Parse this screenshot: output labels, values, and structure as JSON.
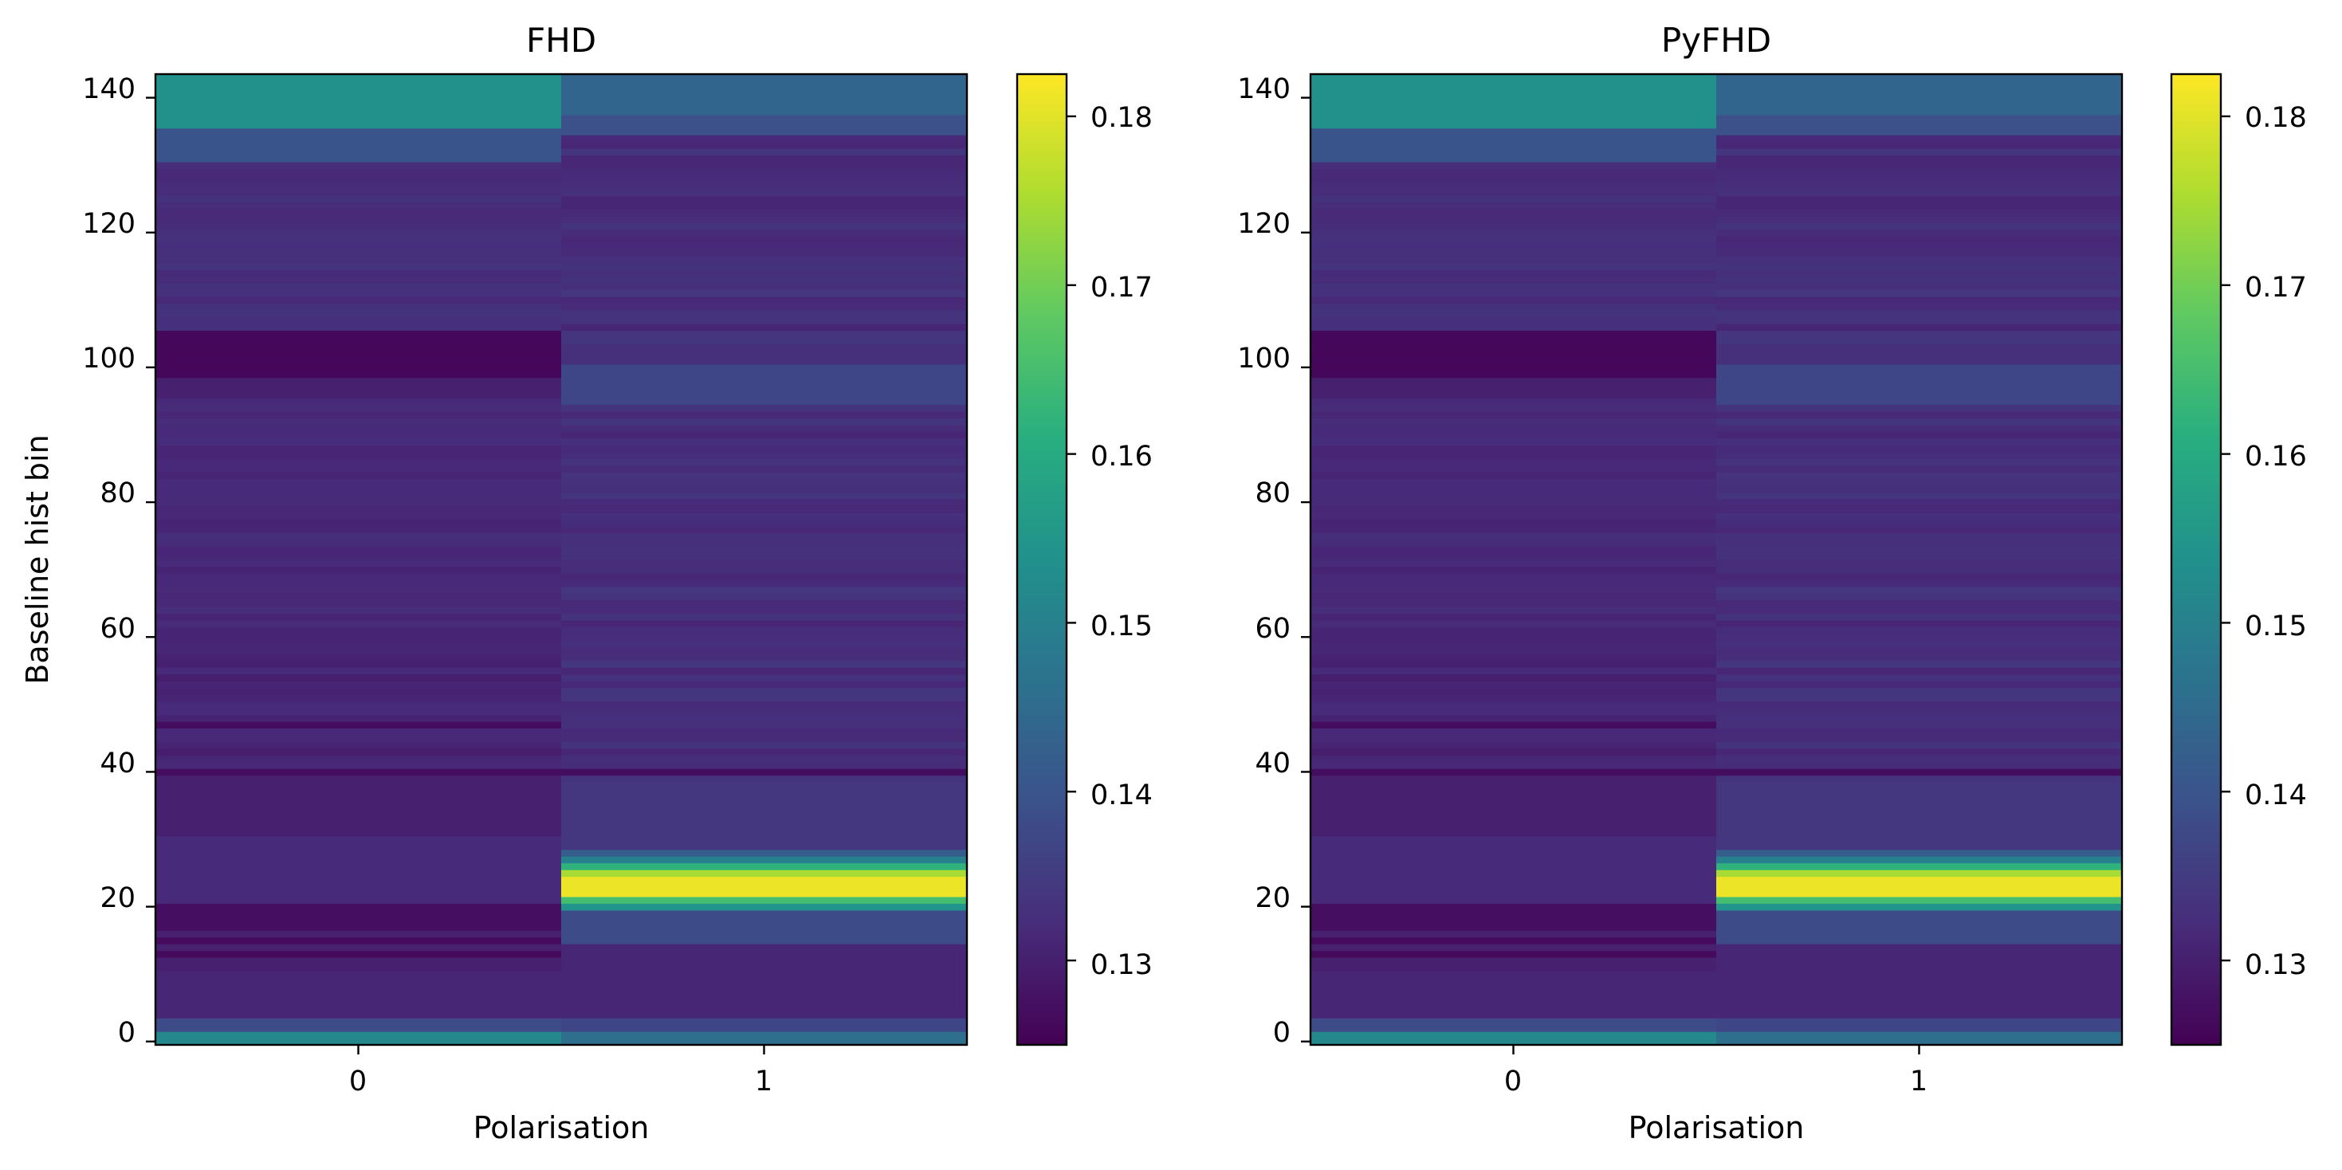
{
  "chart_data": [
    {
      "type": "heatmap",
      "title": "FHD",
      "xlabel": "Polarisation",
      "ylabel": "Baseline hist bin",
      "x_categories": [
        "0",
        "1"
      ],
      "xticks": [
        "0",
        "1"
      ],
      "ylim": [
        0,
        144
      ],
      "yticks": [
        "0",
        "20",
        "40",
        "60",
        "80",
        "100",
        "120",
        "140"
      ],
      "colormap": "viridis",
      "vmin": 0.125,
      "vmax": 0.1825,
      "colorbar_ticks": [
        "0.13",
        "0.14",
        "0.15",
        "0.16",
        "0.17",
        "0.18"
      ],
      "rows": 144
    },
    {
      "type": "heatmap",
      "title": "PyFHD",
      "xlabel": "Polarisation",
      "ylabel": "",
      "x_categories": [
        "0",
        "1"
      ],
      "xticks": [
        "0",
        "1"
      ],
      "ylim": [
        0,
        144
      ],
      "yticks": [
        "0",
        "20",
        "40",
        "60",
        "80",
        "100",
        "120",
        "140"
      ],
      "colormap": "viridis",
      "vmin": 0.125,
      "vmax": 0.1825,
      "colorbar_ticks": [
        "0.13",
        "0.14",
        "0.15",
        "0.16",
        "0.17",
        "0.18"
      ],
      "rows": 144
    }
  ]
}
